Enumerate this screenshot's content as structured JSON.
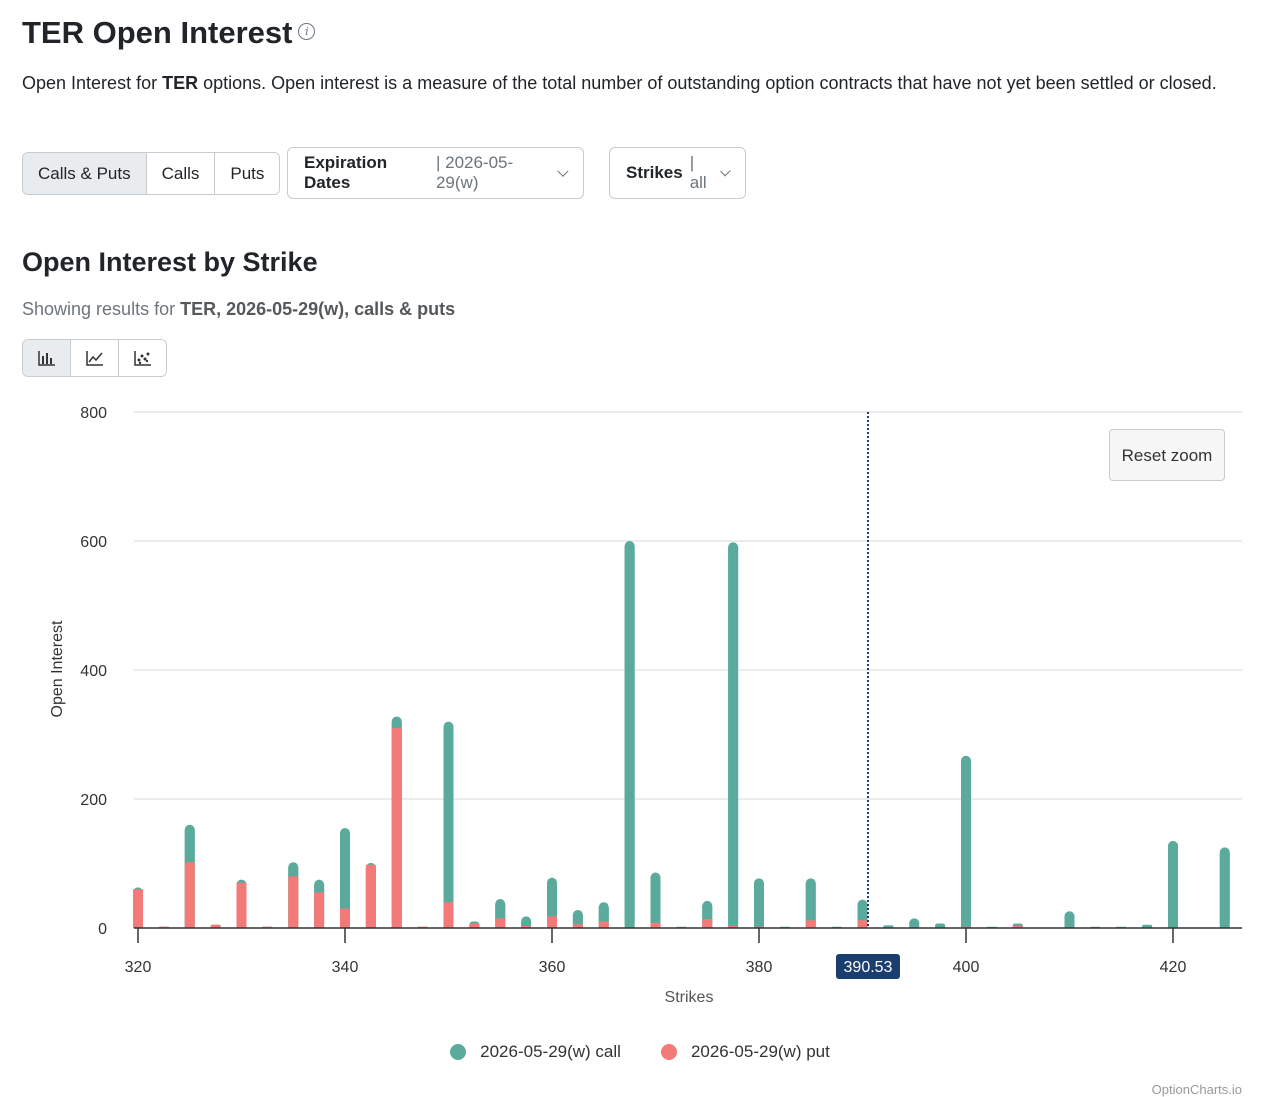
{
  "header": {
    "title": "TER Open Interest",
    "info_icon": "info-icon",
    "desc_prefix": "Open Interest for ",
    "desc_ticker": "TER",
    "desc_suffix": " options. Open interest is a measure of the total number of outstanding option contracts that have not yet been settled or closed."
  },
  "filters": {
    "type_tabs": [
      {
        "label": "Calls & Puts",
        "active": true
      },
      {
        "label": "Calls",
        "active": false
      },
      {
        "label": "Puts",
        "active": false
      }
    ],
    "expiration": {
      "label": "Expiration Dates",
      "value": "| 2026-05-29(w)"
    },
    "strikes": {
      "label": "Strikes",
      "value": "| all"
    }
  },
  "section": {
    "title": "Open Interest by Strike",
    "subtitle_prefix": "Showing results for ",
    "subtitle_bold": "TER, 2026-05-29(w), calls & puts"
  },
  "chart_types": [
    {
      "icon": "bar-chart-icon",
      "active": true
    },
    {
      "icon": "line-chart-icon",
      "active": false
    },
    {
      "icon": "scatter-chart-icon",
      "active": false
    }
  ],
  "reset_zoom_label": "Reset zoom",
  "watermark": "OptionCharts.io",
  "colors": {
    "call": "#5aab9c",
    "put": "#f47a7a",
    "price_line": "#1a3f6e"
  },
  "chart_data": {
    "type": "bar",
    "stacked": true,
    "xlabel": "Strikes",
    "ylabel": "Open Interest",
    "xlim": [
      319,
      426
    ],
    "ylim": [
      0,
      800
    ],
    "x_ticks": [
      320,
      340,
      360,
      380,
      400,
      420
    ],
    "y_ticks": [
      0,
      200,
      400,
      600,
      800
    ],
    "grid": true,
    "legend_position": "bottom",
    "current_price": {
      "value": 390.53,
      "label": "390.53"
    },
    "strikes": [
      320,
      322.5,
      325,
      327.5,
      330,
      332.5,
      335,
      337.5,
      340,
      342.5,
      345,
      347.5,
      350,
      352.5,
      355,
      357.5,
      360,
      362.5,
      365,
      367.5,
      370,
      372.5,
      375,
      377.5,
      380,
      382.5,
      385,
      387.5,
      390,
      392.5,
      395,
      397.5,
      400,
      402.5,
      405,
      410,
      412.5,
      415,
      417.5,
      420,
      425
    ],
    "series": [
      {
        "name": "2026-05-29(w) call",
        "key": "call",
        "values": [
          3,
          0,
          58,
          0,
          5,
          0,
          22,
          20,
          125,
          3,
          18,
          0,
          280,
          3,
          30,
          15,
          60,
          22,
          30,
          600,
          78,
          2,
          28,
          595,
          75,
          2,
          65,
          2,
          32,
          4,
          15,
          7,
          265,
          2,
          4,
          26,
          2,
          2,
          5,
          135,
          125
        ]
      },
      {
        "name": "2026-05-29(w) put",
        "key": "put",
        "values": [
          60,
          2,
          102,
          5,
          70,
          2,
          80,
          55,
          30,
          98,
          310,
          2,
          40,
          7,
          15,
          3,
          18,
          6,
          10,
          0,
          8,
          0,
          14,
          3,
          2,
          0,
          12,
          0,
          12,
          0,
          0,
          0,
          2,
          0,
          3,
          0,
          0,
          0,
          0,
          0,
          0
        ]
      }
    ]
  }
}
